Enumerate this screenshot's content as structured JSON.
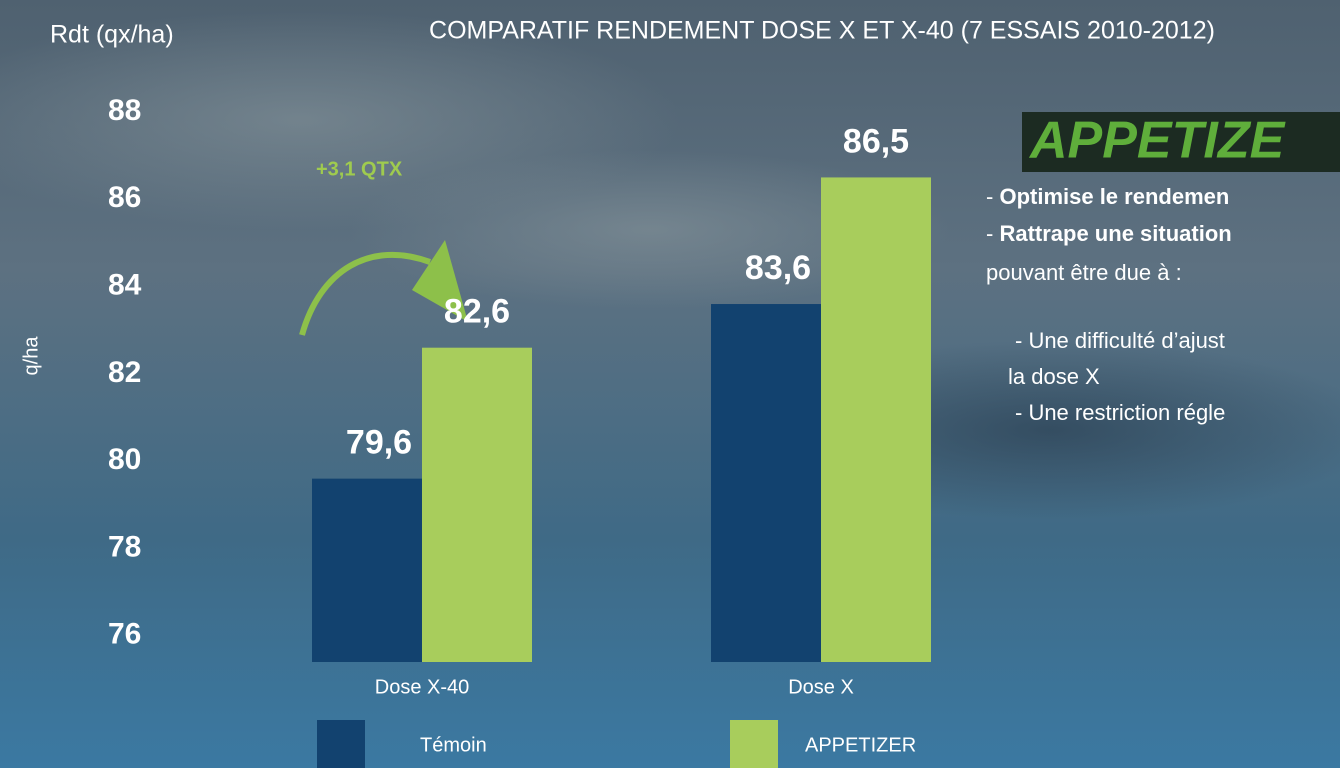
{
  "chart_data": {
    "type": "bar",
    "title": "COMPARATIF RENDEMENT DOSE X ET X-40 (7 ESSAIS 2010-2012)",
    "y_title": "Rdt (qx/ha)",
    "y_axis_label": "q/ha",
    "annotation": "+3,1 QTX",
    "categories": [
      "Dose X-40",
      "Dose X"
    ],
    "series": [
      {
        "name": "Témoin",
        "color": "#12426f",
        "values": [
          79.6,
          83.6
        ],
        "value_labels": [
          "79,6",
          "83,6"
        ]
      },
      {
        "name": "APPETIZER",
        "color": "#a8cd5c",
        "values": [
          82.6,
          86.5
        ],
        "value_labels": [
          "82,6",
          "86,5"
        ]
      }
    ],
    "ylim": [
      75.4,
      89
    ],
    "yticks": [
      76,
      78,
      80,
      82,
      84,
      86,
      88
    ],
    "grid": false
  },
  "side_panel": {
    "logo": "APPETIZE",
    "bullets": [
      {
        "marker": "-",
        "text": "Optimise le rendemen"
      },
      {
        "marker": "-",
        "text": "Rattrape une situation"
      }
    ],
    "continuation": "pouvant être due à :",
    "sub_items": [
      "- Une difficulté d’ajust",
      "la dose X",
      "- Une restriction régle"
    ]
  }
}
